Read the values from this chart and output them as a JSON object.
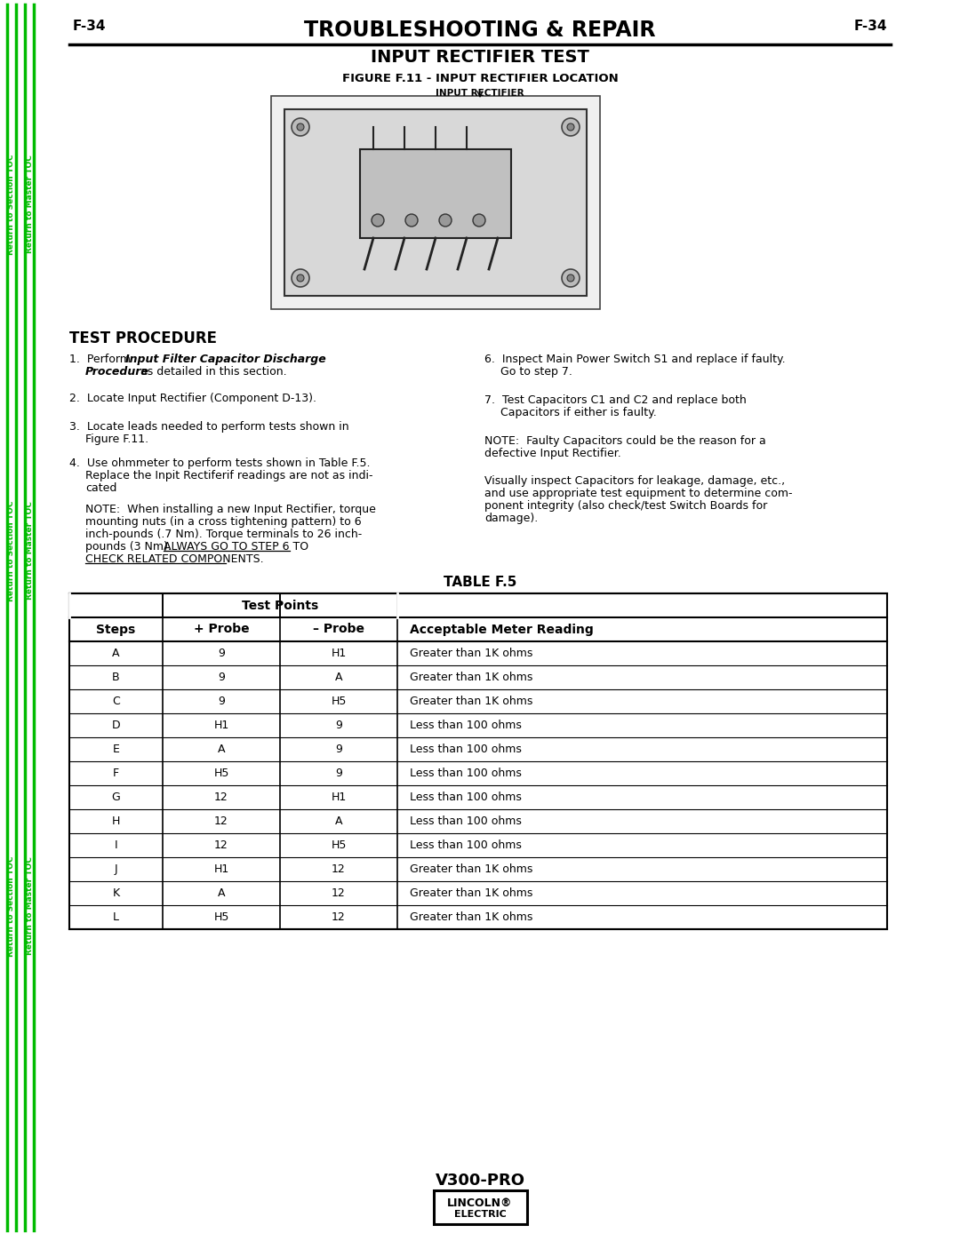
{
  "page_label_left": "F-34",
  "page_label_right": "F-34",
  "header_title": "TROUBLESHOOTING & REPAIR",
  "section_title": "INPUT RECTIFIER TEST",
  "figure_caption": "FIGURE F.11 - INPUT RECTIFIER LOCATION",
  "figure_label": "INPUT RECTIFIER",
  "test_procedure_title": "TEST PROCEDURE",
  "table_title": "TABLE F.5",
  "table_headers": [
    "Steps",
    "+ Probe",
    "– Probe",
    "Acceptable Meter Reading"
  ],
  "table_subheader": "Test Points",
  "table_data": [
    [
      "A",
      "9",
      "H1",
      "Greater than 1K ohms"
    ],
    [
      "B",
      "9",
      "A",
      "Greater than 1K ohms"
    ],
    [
      "C",
      "9",
      "H5",
      "Greater than 1K ohms"
    ],
    [
      "D",
      "H1",
      "9",
      "Less than 100 ohms"
    ],
    [
      "E",
      "A",
      "9",
      "Less than 100 ohms"
    ],
    [
      "F",
      "H5",
      "9",
      "Less than 100 ohms"
    ],
    [
      "G",
      "12",
      "H1",
      "Less than 100 ohms"
    ],
    [
      "H",
      "12",
      "A",
      "Less than 100 ohms"
    ],
    [
      "I",
      "12",
      "H5",
      "Less than 100 ohms"
    ],
    [
      "J",
      "H1",
      "12",
      "Greater than 1K ohms"
    ],
    [
      "K",
      "A",
      "12",
      "Greater than 1K ohms"
    ],
    [
      "L",
      "H5",
      "12",
      "Greater than 1K ohms"
    ]
  ],
  "footer_model": "V300-PRO",
  "sidebar_color": "#00bb00",
  "bg_color": "#ffffff",
  "text_color": "#000000",
  "line_color": "#000000"
}
